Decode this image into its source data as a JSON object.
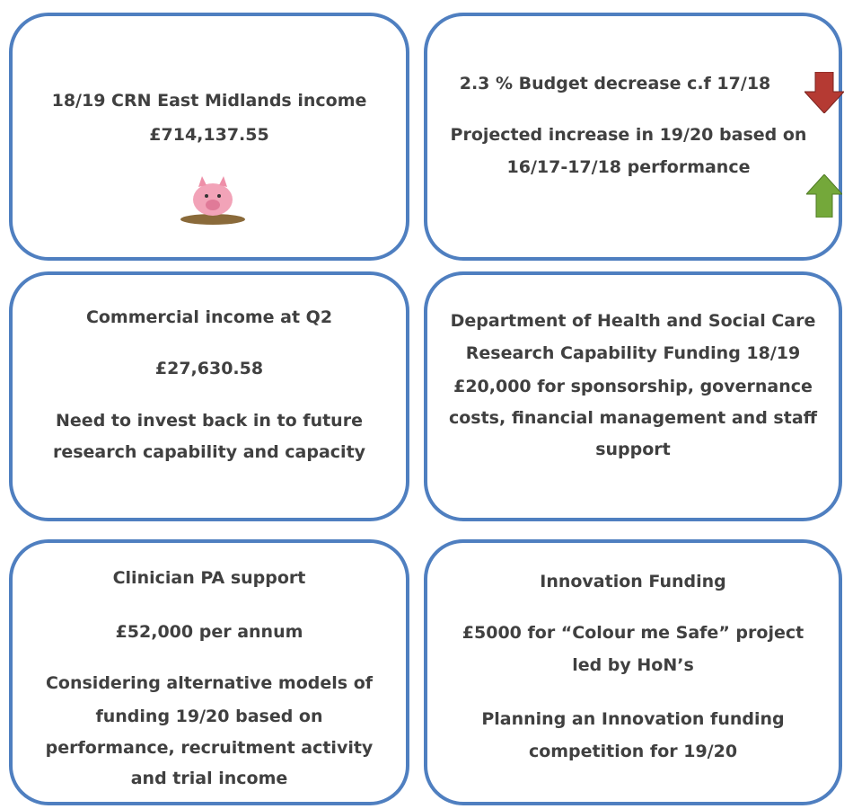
{
  "boxes": [
    {
      "lines": [
        "18/19  CRN East Midlands income",
        "£714,137.55"
      ]
    },
    {
      "lines": [
        "2.3 % Budget decrease c.f 17/18",
        "Projected increase in 19/20 based on",
        "16/17-17/18  performance"
      ]
    },
    {
      "lines": [
        "Commercial income at Q2",
        "£27,630.58",
        "Need to invest back in to future",
        "research capability and capacity"
      ]
    },
    {
      "lines": [
        "Department of Health and Social Care",
        "Research Capability Funding 18/19",
        "£20,000  for sponsorship, governance",
        "costs, financial management and staff",
        "support"
      ]
    },
    {
      "lines": [
        "Clinician PA support",
        "£52,000  per annum",
        "Considering alternative models of",
        "funding 19/20 based on",
        "performance, recruitment activity",
        "and trial income"
      ]
    },
    {
      "lines": [
        "Innovation Funding",
        "£5000  for “Colour me Safe” project",
        "led by HoN’s",
        "Planning an Innovation funding",
        "competition for 19/20"
      ]
    }
  ]
}
